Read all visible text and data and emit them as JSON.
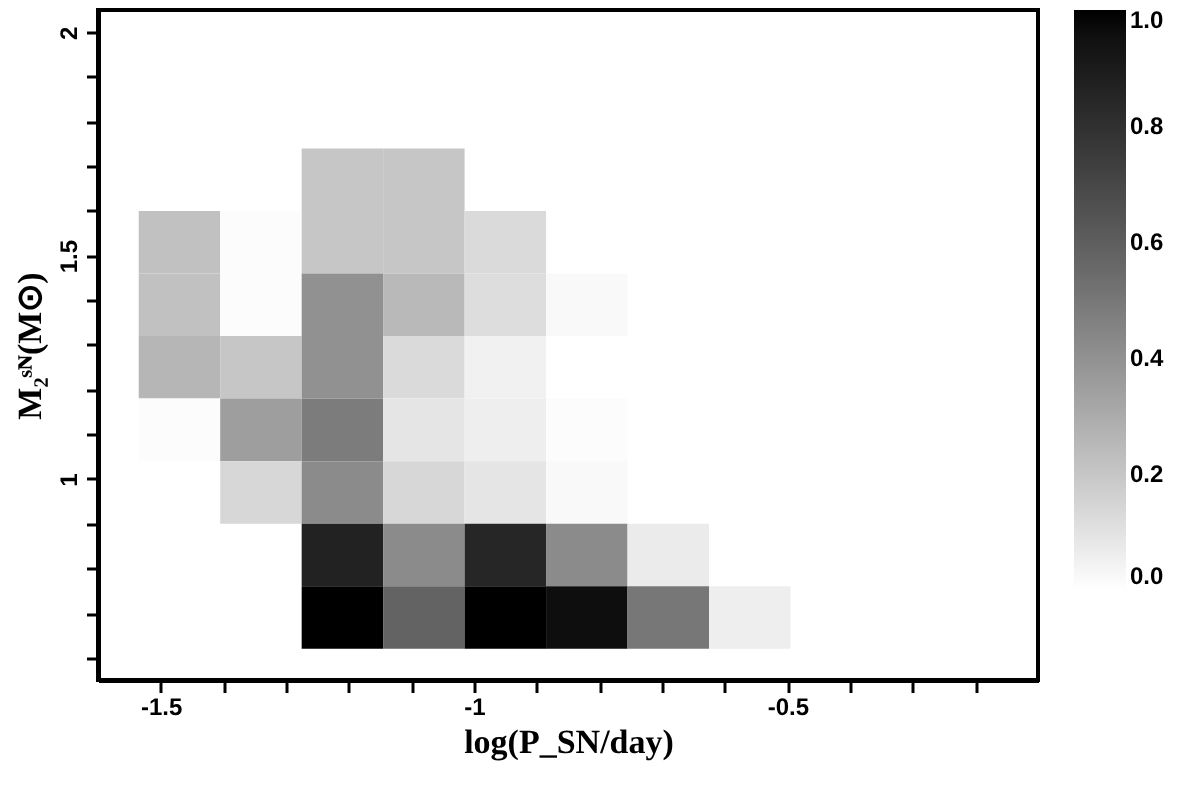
{
  "chart_data": {
    "type": "heatmap",
    "xlabel": "log(P_SN/day)",
    "ylabel": "M₂ˢᴺ(M⊙)",
    "x": [
      -1.47,
      -1.34,
      -1.21,
      -1.08,
      -0.95,
      -0.82,
      -0.69,
      -0.56
    ],
    "y": [
      1.67,
      1.53,
      1.39,
      1.25,
      1.11,
      0.97,
      0.83,
      0.69
    ],
    "cells": [
      [
        null,
        null,
        0.2,
        0.2,
        null,
        null,
        null,
        null
      ],
      [
        0.22,
        0.01,
        0.2,
        0.2,
        0.13,
        null,
        null,
        null
      ],
      [
        0.22,
        0.01,
        0.4,
        0.25,
        0.12,
        0.02,
        null,
        null
      ],
      [
        0.26,
        0.2,
        0.4,
        0.13,
        0.05,
        null,
        null,
        null
      ],
      [
        0.01,
        0.35,
        0.48,
        0.09,
        0.06,
        0.01,
        null,
        null
      ],
      [
        null,
        0.14,
        0.42,
        0.14,
        0.09,
        0.02,
        null,
        null
      ],
      [
        null,
        null,
        0.87,
        0.42,
        0.85,
        0.42,
        0.07,
        null
      ],
      [
        null,
        null,
        1.0,
        0.58,
        1.0,
        0.96,
        0.5,
        0.06
      ]
    ],
    "xlim": [
      -1.6,
      -0.1
    ],
    "ylim": [
      0.55,
      2.05
    ],
    "xticks": [
      -1.5,
      {
        "value": -1.4,
        "label": null
      },
      {
        "value": -1.3,
        "label": null
      },
      {
        "value": -1.2,
        "label": null
      },
      {
        "value": -1.1,
        "label": null
      },
      -1,
      {
        "value": -0.9,
        "label": null
      },
      {
        "value": -0.8,
        "label": null
      },
      {
        "value": -0.7,
        "label": null
      },
      {
        "value": -0.6,
        "label": null
      },
      -0.5,
      {
        "value": -0.4,
        "label": null
      },
      {
        "value": -0.3,
        "label": null
      },
      {
        "value": -0.2,
        "label": null
      }
    ],
    "yticks": [
      {
        "value": 0.6,
        "label": null
      },
      {
        "value": 0.7,
        "label": null
      },
      {
        "value": 0.8,
        "label": null
      },
      {
        "value": 0.9,
        "label": null
      },
      1,
      {
        "value": 1.1,
        "label": null
      },
      {
        "value": 1.2,
        "label": null
      },
      {
        "value": 1.3,
        "label": null
      },
      {
        "value": 1.4,
        "label": null
      },
      1.5,
      {
        "value": 1.6,
        "label": null
      },
      {
        "value": 1.7,
        "label": null
      },
      {
        "value": 1.8,
        "label": null
      },
      {
        "value": 1.9,
        "label": null
      },
      2
    ],
    "clim": [
      0,
      1
    ],
    "cticks": [
      {
        "value": 0,
        "label": "0.0"
      },
      {
        "value": 0.2,
        "label": "0.2"
      },
      {
        "value": 0.4,
        "label": "0.4"
      },
      {
        "value": 0.6,
        "label": "0.6"
      },
      {
        "value": 0.8,
        "label": "0.8"
      },
      {
        "value": 1,
        "label": "1.0"
      }
    ],
    "colors": [
      "#ffffff",
      "#000000"
    ],
    "grid": false
  }
}
